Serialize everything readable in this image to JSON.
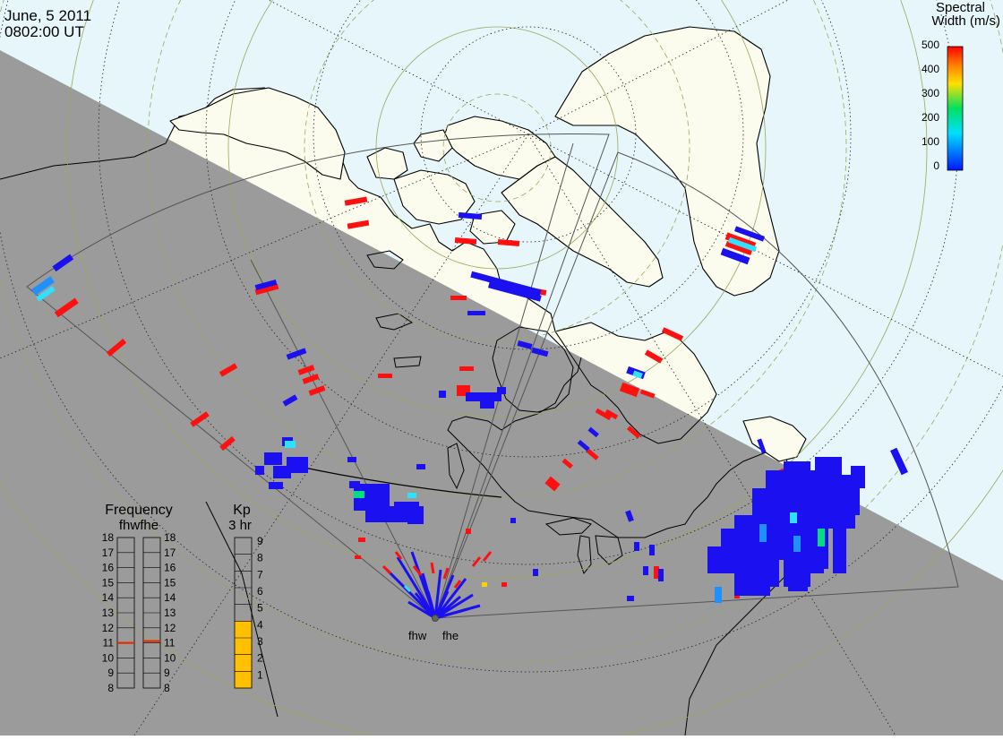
{
  "header": {
    "date": "June, 5 2011",
    "time": "0802:00 UT"
  },
  "colorbar": {
    "title_line1": "Spectral",
    "title_line2": "Width (m/s)",
    "ticks": [
      "500",
      "400",
      "300",
      "200",
      "100",
      "0"
    ]
  },
  "radars": {
    "west": "fhw",
    "east": "fhe"
  },
  "frequency_panel": {
    "title": "Frequency",
    "subtitle": "fhwfhe",
    "left_ticks": [
      "18",
      "17",
      "16",
      "15",
      "14",
      "13",
      "12",
      "11",
      "10",
      "9",
      "8"
    ],
    "right_ticks": [
      "18",
      "17",
      "16",
      "15",
      "14",
      "13",
      "12",
      "11",
      "10",
      "9",
      "8"
    ],
    "fhw_mhz": 11,
    "fhe_mhz": 11
  },
  "kp_panel": {
    "title": "Kp",
    "subtitle": "3 hr",
    "ticks": [
      "9",
      "8",
      "7",
      "6",
      "5",
      "4",
      "3",
      "2",
      "1"
    ],
    "value": 4
  },
  "colors": {
    "ocean": "#e6f6fb",
    "land": "#fbfbee",
    "night": "#9b9b9b",
    "fill_kp": "#ffc000",
    "freq_marker": "#e03000",
    "scale_low": "#0018ff",
    "scale_mid": "#00e060",
    "scale_high": "#ff0000"
  }
}
